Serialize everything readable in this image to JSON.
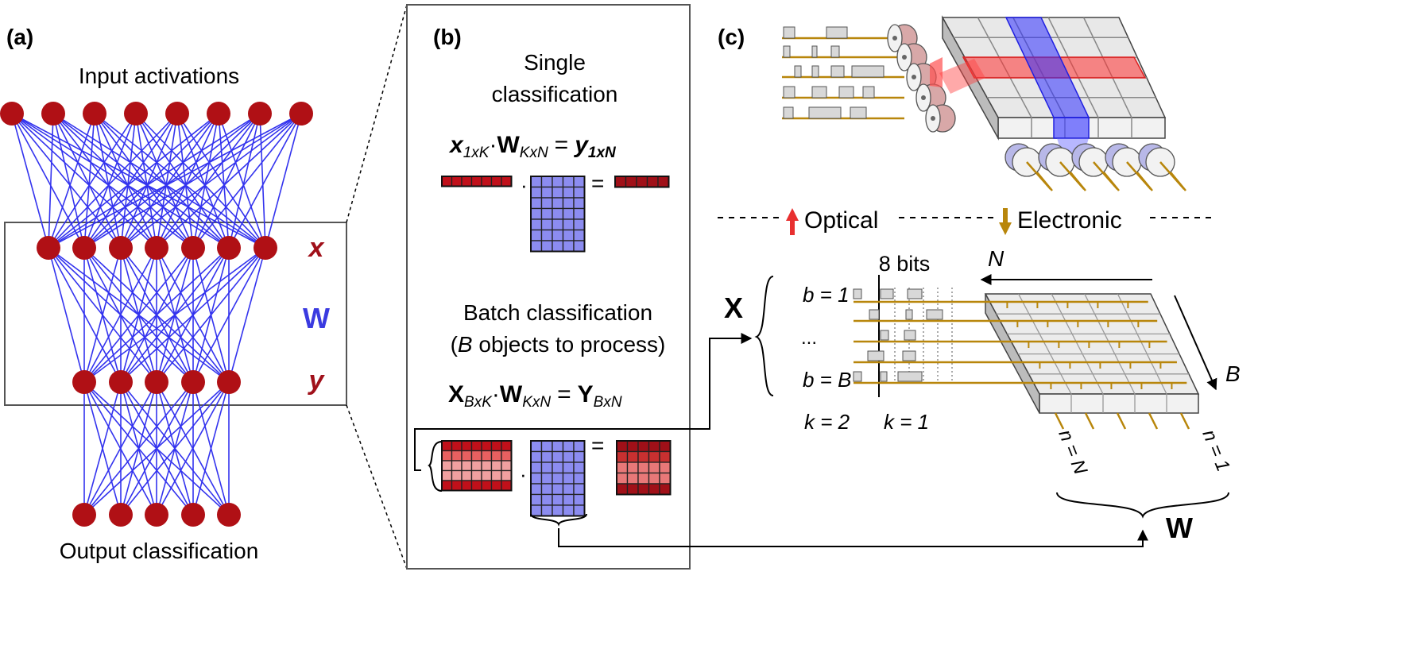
{
  "panels": {
    "a": {
      "label": "(a)",
      "top_label": "Input activations",
      "bottom_label": "Output classification",
      "x_label": "x",
      "w_label": "W",
      "y_label": "y",
      "layer_sizes": [
        8,
        7,
        5,
        5
      ]
    },
    "b": {
      "label": "(b)",
      "single_title_1": "Single",
      "single_title_2": "classification",
      "eq_single": {
        "x": "x",
        "x_sub": "1xK",
        "dot": "·",
        "w": "W",
        "w_sub": "KxN",
        "eq": "=",
        "y": "y",
        "y_sub": "1xN"
      },
      "batch_title_1": "Batch classification",
      "batch_title_2_b": "B",
      "batch_title_2_rest": " objects to process)",
      "batch_title_2_open": "(",
      "eq_batch": {
        "x": "X",
        "x_sub": "BxK",
        "dot": "·",
        "w": "W",
        "w_sub": "KxN",
        "eq": "=",
        "y": "Y",
        "y_sub": "BxN"
      },
      "mini_eq": "=",
      "mini_dot": "·"
    },
    "c": {
      "label": "(c)",
      "optical_label": "Optical",
      "electronic_label": "Electronic",
      "bits_label": "8 bits",
      "X_label": "X",
      "b1_label": "b = 1",
      "dots_label": "...",
      "bB_label": "b = B",
      "k2_label": "k = 2",
      "k1_label": "k = 1",
      "N_label": "N",
      "B_label": "B",
      "nN_label": "n = N",
      "n1_label": "n = 1",
      "W_label": "W"
    }
  },
  "colors": {
    "node_red": "#b01015",
    "edge_blue": "#3333ee",
    "x_red": "#a0101a",
    "w_blue": "#3a3ae0",
    "mat_red": "#c0101a",
    "mat_pink": "#f0a0a0",
    "mat_blue": "#8c8cf0",
    "gold": "#b8860b",
    "optical_arrow": "#e83030"
  }
}
